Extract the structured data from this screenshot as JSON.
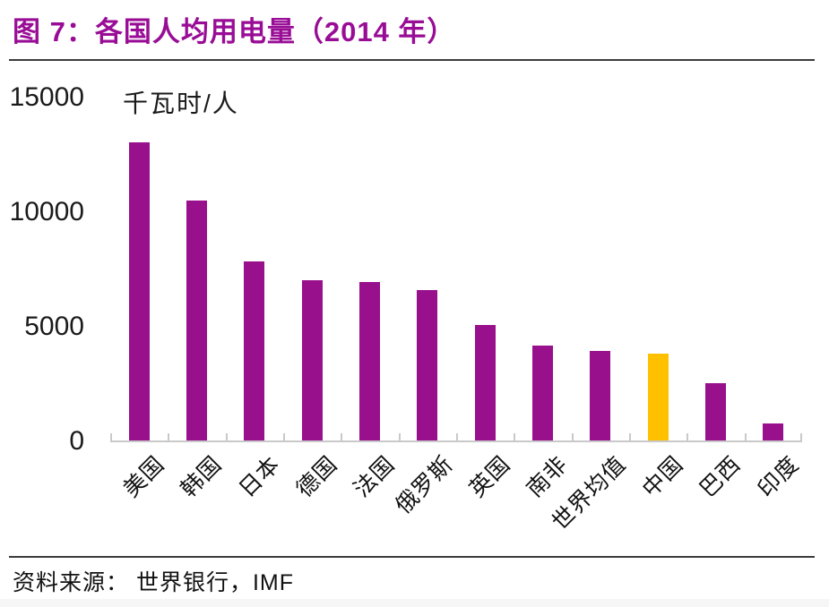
{
  "title": {
    "text": "图 7：各国人均用电量（2014 年）"
  },
  "chart_data": {
    "type": "bar",
    "title": "各国人均用电量（2014 年）",
    "unit_label": "千瓦时/人",
    "xlabel": "",
    "ylabel": "千瓦时/人",
    "categories": [
      "美国",
      "韩国",
      "日本",
      "德国",
      "法国",
      "俄罗斯",
      "英国",
      "南非",
      "世界均值",
      "中国",
      "巴西",
      "印度"
    ],
    "values": [
      13000,
      10450,
      7800,
      7000,
      6900,
      6570,
      5050,
      4150,
      3920,
      3800,
      2500,
      760
    ],
    "ylim": [
      0,
      15000
    ],
    "yticks": [
      15000,
      10000,
      5000,
      0
    ],
    "grid": false,
    "legend_position": "none",
    "bar_color": "#99108C",
    "highlight_category": "中国",
    "highlight_index": 9,
    "highlight_color": "#FFC000",
    "axis_color": "#C9C9C9"
  },
  "footer": {
    "source_label": "资料来源： 世界银行，IMF"
  },
  "colors": {
    "title_text": "#990D96",
    "rule": "#3B3B3B",
    "bar_primary": "#99108C",
    "bar_highlight": "#FFC000",
    "axis": "#C9C9C9"
  }
}
